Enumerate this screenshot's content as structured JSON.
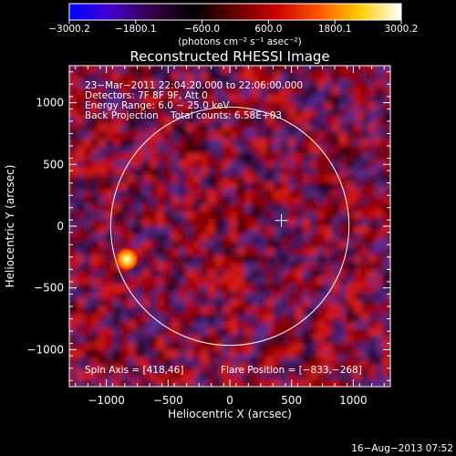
{
  "colorbar": {
    "tick_labels": [
      "−3000.2",
      "−1800.1",
      "−600.0",
      "600.0",
      "1800.1",
      "3000.2"
    ],
    "unit_label": "(photons cm⁻² s⁻¹ asec⁻²)",
    "range": [
      -3000.2,
      3000.2
    ],
    "colors": [
      "#0000ff",
      "#4400cc",
      "#330044",
      "#000000",
      "#660000",
      "#cc0000",
      "#ff5500",
      "#ffcc00",
      "#ffffff"
    ]
  },
  "image": {
    "title": "Reconstructed RHESSI Image",
    "info_lines": [
      "23−Mar−2011 22:04:20.000 to 22:06:00.000",
      "Detectors: 7F 8F 9F, Att 0",
      "Energy Range: 6.0 − 25.0 keV",
      "Back Projection    Total counts: 6.58E+03"
    ],
    "spin_axis": "Spin Axis = [418,46]",
    "flare_position": "Flare Position = [−833,−268]",
    "timestamp": "16−Aug−2013 07:52"
  },
  "axes": {
    "xlabel": "Heliocentric X (arcsec)",
    "ylabel": "Heliocentric Y (arcsec)",
    "xlim": [
      -1300,
      1300
    ],
    "ylim": [
      -1300,
      1300
    ],
    "xticks": [
      -1000,
      -500,
      0,
      500,
      1000
    ],
    "yticks": [
      -1000,
      -500,
      0,
      500,
      1000
    ],
    "xtick_labels": [
      "−1000",
      "−500",
      "0",
      "500",
      "1000"
    ],
    "ytick_labels": [
      "−1000",
      "−500",
      "0",
      "500",
      "1000"
    ]
  },
  "features": {
    "solar_limb_radius": 965,
    "spin_axis_marker": [
      418,
      46
    ],
    "flare_source": [
      -833,
      -268
    ],
    "flare_color": "#ffcc33"
  }
}
